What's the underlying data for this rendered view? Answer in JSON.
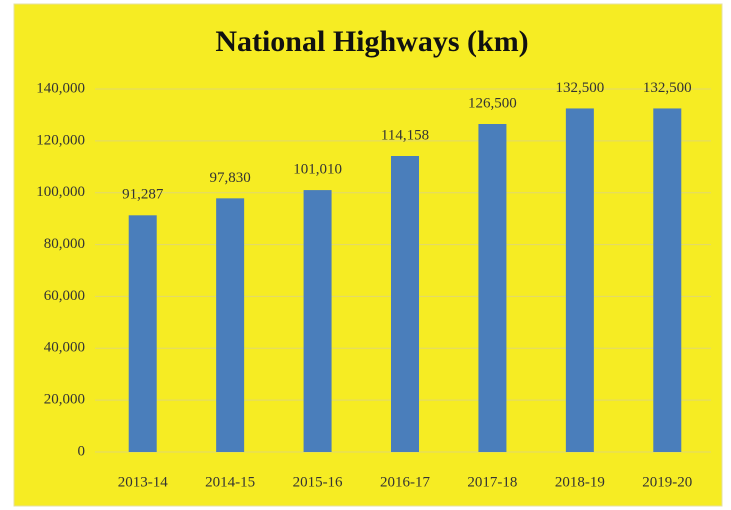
{
  "chart_data": {
    "type": "bar",
    "title": "National Highways (km)",
    "categories": [
      "2013-14",
      "2014-15",
      "2015-16",
      "2016-17",
      "2017-18",
      "2018-19",
      "2019-20"
    ],
    "values": [
      91287,
      97830,
      101010,
      114158,
      126500,
      132500,
      132500
    ],
    "value_labels": [
      "91,287",
      "97,830",
      "101,010",
      "114,158",
      "126,500",
      "132,500",
      "132,500"
    ],
    "color": "#4a7ebb",
    "ylim": [
      0,
      140000
    ],
    "yticks": [
      0,
      {
        "value": 20000,
        "label": "20,000"
      },
      {
        "value": 40000,
        "label": "40,000"
      },
      {
        "value": 60000,
        "label": "60,000"
      },
      {
        "value": 80000,
        "label": "80,000"
      },
      {
        "value": 100000,
        "label": "100,000"
      },
      {
        "value": 120000,
        "label": "120,000"
      },
      {
        "value": 140000,
        "label": "140,000"
      }
    ],
    "grid": true
  }
}
